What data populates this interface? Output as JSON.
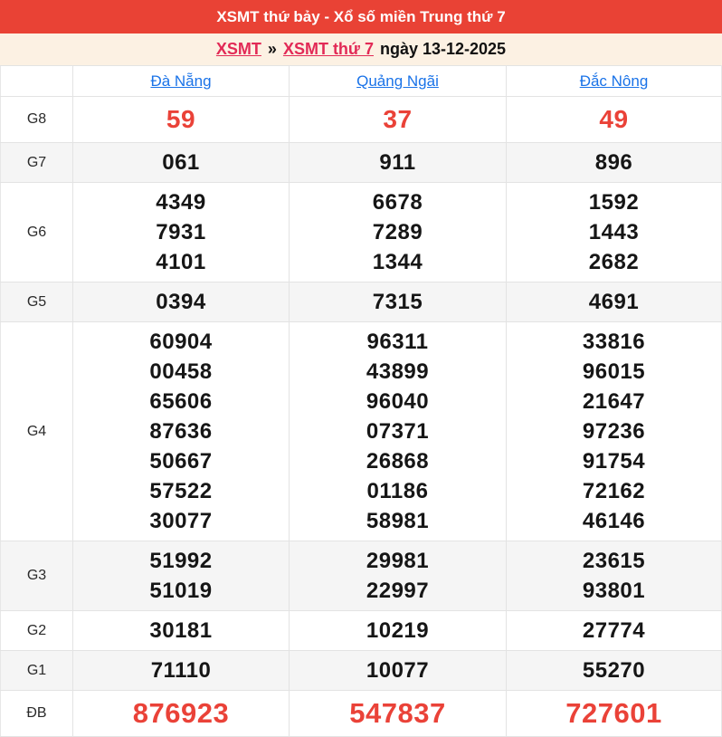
{
  "header": {
    "title": "XSMT thứ bảy - Xổ số miền Trung thứ 7"
  },
  "breadcrumb": {
    "link_region": "XSMT",
    "separator": "»",
    "link_day": "XSMT thứ 7",
    "date_text": "ngày 13-12-2025"
  },
  "columns": [
    "Đà Nẵng",
    "Quảng Ngãi",
    "Đắc Nông"
  ],
  "rows": [
    {
      "label": "G8",
      "highlight": true,
      "values": [
        [
          "59"
        ],
        [
          "37"
        ],
        [
          "49"
        ]
      ]
    },
    {
      "label": "G7",
      "highlight": false,
      "values": [
        [
          "061"
        ],
        [
          "911"
        ],
        [
          "896"
        ]
      ]
    },
    {
      "label": "G6",
      "highlight": false,
      "values": [
        [
          "4349",
          "7931",
          "4101"
        ],
        [
          "6678",
          "7289",
          "1344"
        ],
        [
          "1592",
          "1443",
          "2682"
        ]
      ]
    },
    {
      "label": "G5",
      "highlight": false,
      "values": [
        [
          "0394"
        ],
        [
          "7315"
        ],
        [
          "4691"
        ]
      ]
    },
    {
      "label": "G4",
      "highlight": false,
      "values": [
        [
          "60904",
          "00458",
          "65606",
          "87636",
          "50667",
          "57522",
          "30077"
        ],
        [
          "96311",
          "43899",
          "96040",
          "07371",
          "26868",
          "01186",
          "58981"
        ],
        [
          "33816",
          "96015",
          "21647",
          "97236",
          "91754",
          "72162",
          "46146"
        ]
      ]
    },
    {
      "label": "G3",
      "highlight": false,
      "values": [
        [
          "51992",
          "51019"
        ],
        [
          "29981",
          "22997"
        ],
        [
          "23615",
          "93801"
        ]
      ]
    },
    {
      "label": "G2",
      "highlight": false,
      "values": [
        [
          "30181"
        ],
        [
          "10219"
        ],
        [
          "27774"
        ]
      ]
    },
    {
      "label": "G1",
      "highlight": false,
      "values": [
        [
          "71110"
        ],
        [
          "10077"
        ],
        [
          "55270"
        ]
      ]
    },
    {
      "label": "ĐB",
      "highlight": true,
      "values": [
        [
          "876923"
        ],
        [
          "547837"
        ],
        [
          "727601"
        ]
      ]
    }
  ],
  "colors": {
    "topbar_bg": "#e94235",
    "breadcrumb_bg": "#fcf1e3",
    "breadcrumb_link": "#e22a56",
    "column_link": "#1a73e8",
    "highlight_number": "#ea4238",
    "stripe_bg": "#f5f5f5",
    "border": "#e3e3e3"
  }
}
